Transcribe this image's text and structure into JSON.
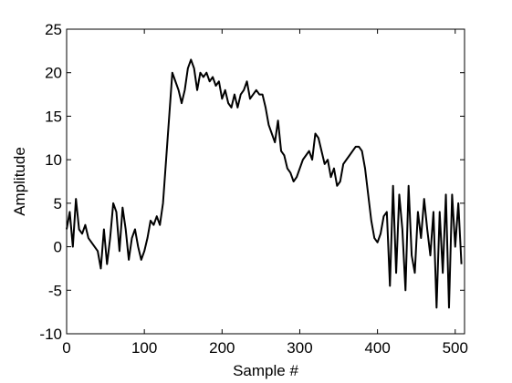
{
  "chart_data": {
    "type": "line",
    "xlabel": "Sample #",
    "ylabel": "Amplitude",
    "xlim": [
      0,
      512
    ],
    "ylim": [
      -10,
      25
    ],
    "xticks": [
      0,
      100,
      200,
      300,
      400,
      500
    ],
    "yticks": [
      -10,
      -5,
      0,
      5,
      10,
      15,
      20,
      25
    ],
    "series": [
      {
        "color": "#000000",
        "x": [
          0,
          4,
          8,
          12,
          16,
          20,
          24,
          28,
          32,
          36,
          40,
          44,
          48,
          52,
          56,
          60,
          64,
          68,
          72,
          76,
          80,
          84,
          88,
          92,
          96,
          100,
          104,
          108,
          112,
          116,
          120,
          124,
          128,
          132,
          136,
          140,
          144,
          148,
          152,
          156,
          160,
          164,
          168,
          172,
          176,
          180,
          184,
          188,
          192,
          196,
          200,
          204,
          208,
          212,
          216,
          220,
          224,
          228,
          232,
          236,
          240,
          244,
          248,
          252,
          256,
          260,
          264,
          268,
          272,
          276,
          280,
          284,
          288,
          292,
          296,
          300,
          304,
          308,
          312,
          316,
          320,
          324,
          328,
          332,
          336,
          340,
          344,
          348,
          352,
          356,
          360,
          364,
          368,
          372,
          376,
          380,
          384,
          388,
          392,
          396,
          400,
          404,
          408,
          412,
          416,
          420,
          424,
          428,
          432,
          436,
          440,
          444,
          448,
          452,
          456,
          460,
          464,
          468,
          472,
          476,
          480,
          484,
          488,
          492,
          496,
          500,
          504,
          508
        ],
        "values": [
          2,
          4,
          0,
          5.5,
          2,
          1.5,
          2.5,
          1,
          0.5,
          0,
          -0.5,
          -2.5,
          2,
          -2,
          1,
          5,
          4,
          -0.5,
          4.5,
          2,
          -1.5,
          1,
          2,
          0,
          -1.5,
          -0.5,
          1,
          3,
          2.5,
          3.5,
          2.5,
          5,
          10,
          15,
          20,
          19,
          18,
          16.5,
          18,
          20.5,
          21.5,
          20.5,
          18,
          20,
          19.5,
          20,
          19,
          19.5,
          18.5,
          19,
          17,
          18,
          16.5,
          16,
          17.5,
          16,
          17.5,
          18,
          19,
          17,
          17.5,
          18,
          17.5,
          17.5,
          16,
          14,
          13,
          12,
          14.5,
          11,
          10.5,
          9,
          8.5,
          7.5,
          8,
          9,
          10,
          10.5,
          11,
          10,
          13,
          12.5,
          11,
          9.5,
          10,
          8,
          9,
          7,
          7.5,
          9.5,
          10,
          10.5,
          11,
          11.5,
          11.5,
          11,
          9,
          6,
          3,
          1,
          0.5,
          1.5,
          3.5,
          4,
          -4.5,
          7,
          -3,
          6,
          2,
          -5,
          7,
          -1,
          -3,
          4,
          1,
          5.5,
          2,
          -1,
          4,
          -7,
          4,
          -3,
          6,
          -7,
          6,
          0,
          5,
          -2
        ]
      }
    ]
  }
}
